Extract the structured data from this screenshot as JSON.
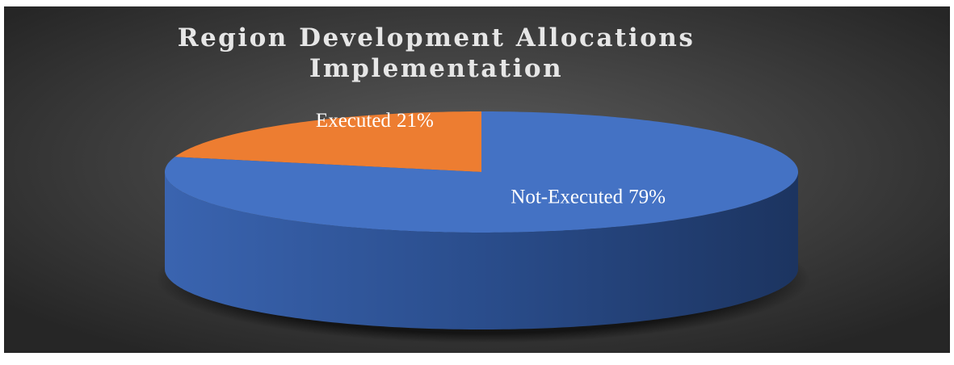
{
  "chart_data": {
    "type": "pie3d",
    "title": "Region Development Allocations Implementation",
    "categories": [
      "Executed",
      "Not-Executed"
    ],
    "values": [
      21,
      79
    ],
    "value_labels": [
      "21%",
      "79%"
    ],
    "colors": [
      "#ed7d31",
      "#4472c4"
    ]
  }
}
